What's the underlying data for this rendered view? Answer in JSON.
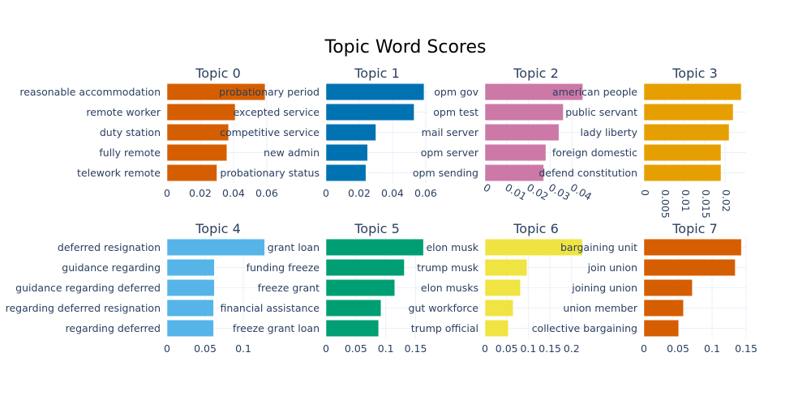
{
  "title": "Topic Word Scores",
  "chart_data": [
    {
      "type": "bar",
      "orientation": "horizontal",
      "title": "Topic 0",
      "color": "#D55E00",
      "categories": [
        "reasonable accommodation",
        "remote worker",
        "duty station",
        "fully remote",
        "telework remote"
      ],
      "values": [
        0.059,
        0.041,
        0.037,
        0.036,
        0.03
      ],
      "xlim": [
        0,
        0.0615
      ],
      "xticks": [
        "0",
        "0.02",
        "0.04",
        "0.06"
      ],
      "tickvals": [
        0,
        0.02,
        0.04,
        0.06
      ],
      "tick_angle": 0
    },
    {
      "type": "bar",
      "orientation": "horizontal",
      "title": "Topic 1",
      "color": "#0072B2",
      "categories": [
        "probationary period",
        "excepted service",
        "competitive service",
        "new admin",
        "probationary status"
      ],
      "values": [
        0.059,
        0.053,
        0.03,
        0.025,
        0.024
      ],
      "xlim": [
        0,
        0.0615
      ],
      "xticks": [
        "0",
        "0.02",
        "0.04",
        "0.06"
      ],
      "tickvals": [
        0,
        0.02,
        0.04,
        0.06
      ],
      "tick_angle": 0
    },
    {
      "type": "bar",
      "orientation": "horizontal",
      "title": "Topic 2",
      "color": "#CC79A7",
      "categories": [
        "opm gov",
        "opm test",
        "mail server",
        "opm server",
        "opm sending"
      ],
      "values": [
        0.045,
        0.036,
        0.034,
        0.028,
        0.027
      ],
      "xlim": [
        0,
        0.047
      ],
      "xticks": [
        "0",
        "0.01",
        "0.02",
        "0.03",
        "0.04"
      ],
      "tickvals": [
        0,
        0.01,
        0.02,
        0.03,
        0.04
      ],
      "tick_angle": 30
    },
    {
      "type": "bar",
      "orientation": "horizontal",
      "title": "Topic 3",
      "color": "#E69F00",
      "categories": [
        "american people",
        "public servant",
        "lady liberty",
        "foreign domestic",
        "defend constitution"
      ],
      "values": [
        0.024,
        0.022,
        0.021,
        0.019,
        0.019
      ],
      "xlim": [
        0,
        0.0252
      ],
      "xticks": [
        "0",
        "0.005",
        "0.01",
        "0.015",
        "0.02"
      ],
      "tickvals": [
        0,
        0.005,
        0.01,
        0.015,
        0.02
      ],
      "tick_angle": 90
    },
    {
      "type": "bar",
      "orientation": "horizontal",
      "title": "Topic 4",
      "color": "#56B4E9",
      "categories": [
        "deferred resignation",
        "guidance regarding",
        "guidance regarding deferred",
        "regarding deferred resignation",
        "regarding deferred"
      ],
      "values": [
        0.128,
        0.062,
        0.062,
        0.061,
        0.061
      ],
      "xlim": [
        0,
        0.134
      ],
      "xticks": [
        "0",
        "0.05",
        "0.1"
      ],
      "tickvals": [
        0,
        0.05,
        0.1
      ],
      "tick_angle": 0
    },
    {
      "type": "bar",
      "orientation": "horizontal",
      "title": "Topic 5",
      "color": "#009E73",
      "categories": [
        "grant loan",
        "funding freeze",
        "freeze grant",
        "financial assistance",
        "freeze grant loan"
      ],
      "values": [
        0.163,
        0.131,
        0.115,
        0.092,
        0.088
      ],
      "xlim": [
        0,
        0.171
      ],
      "xticks": [
        "0",
        "0.05",
        "0.1",
        "0.15"
      ],
      "tickvals": [
        0,
        0.05,
        0.1,
        0.15
      ],
      "tick_angle": 0
    },
    {
      "type": "bar",
      "orientation": "horizontal",
      "title": "Topic 6",
      "color": "#F0E442",
      "categories": [
        "elon musk",
        "trump musk",
        "elon musks",
        "gut workforce",
        "trump official"
      ],
      "values": [
        0.225,
        0.097,
        0.082,
        0.065,
        0.054
      ],
      "xlim": [
        0,
        0.236
      ],
      "xticks": [
        "0",
        "0.05",
        "0.1",
        "0.15",
        "0.2"
      ],
      "tickvals": [
        0,
        0.05,
        0.1,
        0.15,
        0.2
      ],
      "tick_angle": 0
    },
    {
      "type": "bar",
      "orientation": "horizontal",
      "title": "Topic 7",
      "color": "#D55E00",
      "categories": [
        "bargaining unit",
        "join union",
        "joining union",
        "union member",
        "collective bargaining"
      ],
      "values": [
        0.143,
        0.134,
        0.071,
        0.058,
        0.051
      ],
      "xlim": [
        0,
        0.15
      ],
      "xticks": [
        "0",
        "0.05",
        "0.1",
        "0.15"
      ],
      "tickvals": [
        0,
        0.05,
        0.1,
        0.15
      ],
      "tick_angle": 0
    }
  ]
}
